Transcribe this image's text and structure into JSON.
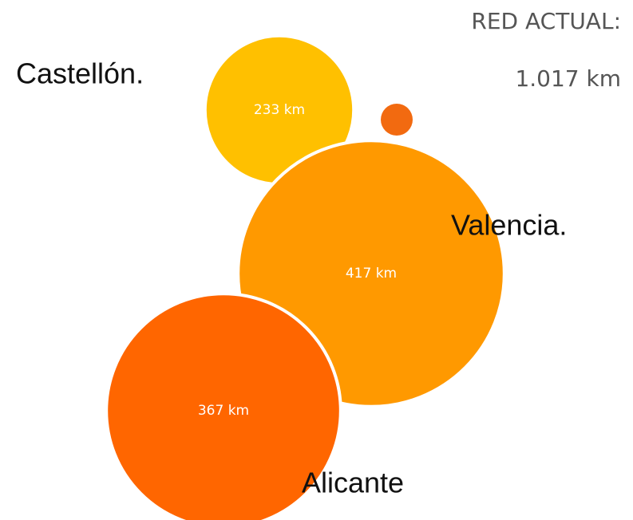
{
  "chart_data": {
    "type": "bubble",
    "title": "RED ACTUAL:",
    "subtitle": "1.017 km",
    "categories": [
      "Castellón.",
      "Valencia.",
      "Alicante"
    ],
    "values": [
      233,
      417,
      367
    ],
    "value_labels": [
      "233 km",
      "417 km",
      "367 km"
    ],
    "colors": [
      "#ffc000",
      "#ff9900",
      "#ff6600"
    ]
  }
}
